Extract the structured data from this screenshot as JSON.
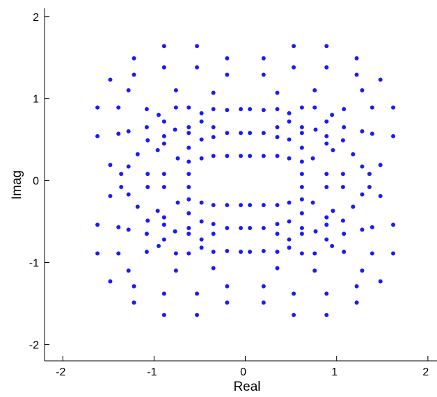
{
  "chart_data": {
    "type": "scatter",
    "title": "",
    "xlabel": "Real",
    "ylabel": "Imag",
    "xlim": [
      -2.2,
      2.1
    ],
    "ylim": [
      -2.2,
      2.1
    ],
    "xticks": [
      -2,
      -1,
      0,
      1,
      2
    ],
    "yticks": [
      -2,
      -1,
      0,
      1,
      2
    ],
    "xtick_labels": [
      "-2",
      "-1",
      "0",
      "1",
      "2"
    ],
    "ytick_labels": [
      "-2",
      "-1",
      "0",
      "1",
      "2"
    ],
    "grid": false,
    "legend": "none",
    "marker_color": "#1a1aff",
    "series": [
      {
        "points_first_quadrant": [
          [
            0.05,
            0.87
          ],
          [
            0.2,
            0.86
          ],
          [
            0.05,
            0.58
          ],
          [
            0.2,
            0.58
          ],
          [
            0.05,
            0.3
          ],
          [
            0.2,
            0.3
          ],
          [
            0.53,
            1.64
          ],
          [
            0.89,
            1.64
          ],
          [
            0.2,
            1.49
          ],
          [
            1.22,
            1.49
          ],
          [
            0.53,
            1.38
          ],
          [
            0.89,
            1.38
          ],
          [
            0.2,
            1.29
          ],
          [
            1.22,
            1.29
          ],
          [
            1.48,
            1.23
          ],
          [
            0.76,
            1.1
          ],
          [
            1.28,
            1.1
          ],
          [
            0.35,
            1.07
          ],
          [
            0.62,
            0.89
          ],
          [
            0.76,
            0.89
          ],
          [
            1.39,
            0.89
          ],
          [
            1.62,
            0.89
          ],
          [
            0.35,
            0.87
          ],
          [
            1.08,
            0.87
          ],
          [
            0.48,
            0.82
          ],
          [
            0.95,
            0.8
          ],
          [
            0.48,
            0.72
          ],
          [
            0.89,
            0.72
          ],
          [
            0.35,
            0.65
          ],
          [
            0.62,
            0.65
          ],
          [
            1.08,
            0.65
          ],
          [
            0.77,
            0.62
          ],
          [
            1.28,
            0.6
          ],
          [
            0.62,
            0.58
          ],
          [
            1.39,
            0.57
          ],
          [
            0.89,
            0.54
          ],
          [
            1.62,
            0.54
          ],
          [
            0.35,
            0.53
          ],
          [
            0.48,
            0.5
          ],
          [
            1.07,
            0.49
          ],
          [
            0.89,
            0.45
          ],
          [
            0.62,
            0.4
          ],
          [
            0.96,
            0.37
          ],
          [
            1.18,
            0.32
          ],
          [
            0.35,
            0.3
          ],
          [
            0.48,
            0.27
          ],
          [
            0.74,
            0.27
          ],
          [
            0.62,
            0.23
          ],
          [
            1.48,
            0.19
          ],
          [
            1.28,
            0.17
          ],
          [
            0.62,
            0.08
          ],
          [
            0.89,
            0.08
          ],
          [
            1.07,
            0.08
          ],
          [
            1.36,
            0.08
          ]
        ]
      }
    ]
  }
}
